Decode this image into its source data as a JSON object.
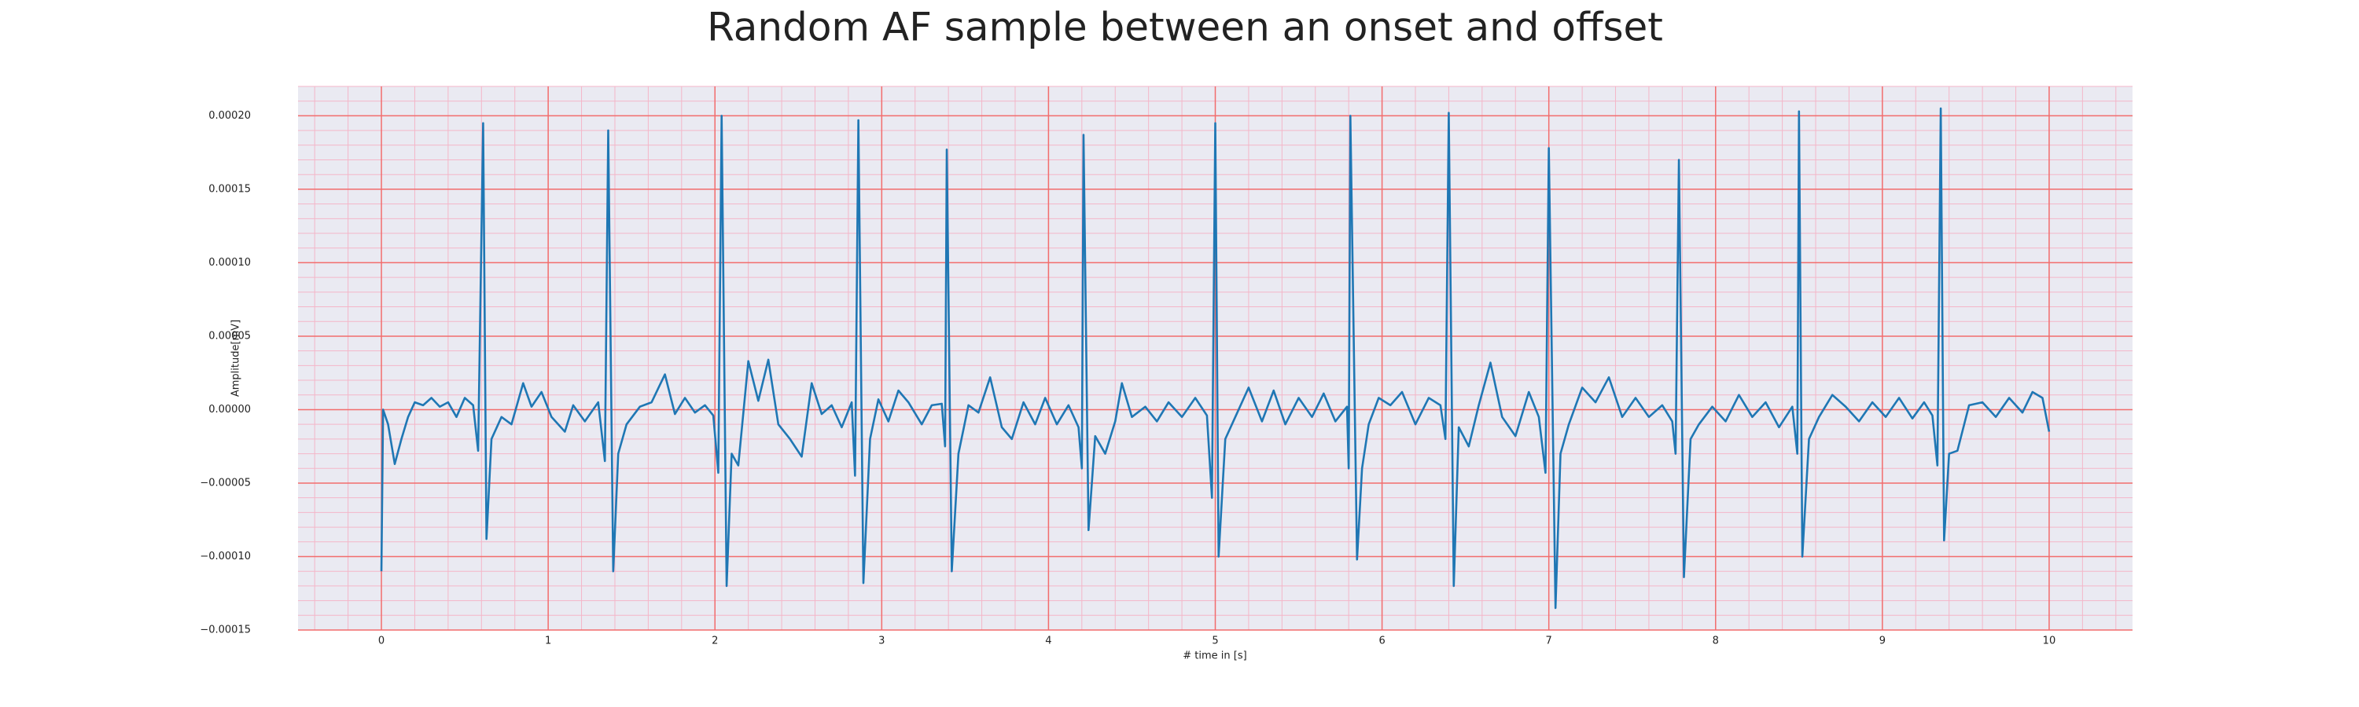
{
  "chart_data": {
    "type": "line",
    "title": "Random AF sample between an onset and offset",
    "x_label": "# time in [s]",
    "y_label": "Amplitude[mV]",
    "color": "#1f77b4",
    "grid": true,
    "minor_grid": true,
    "xlim": [
      -0.5,
      10.5
    ],
    "ylim": [
      -0.00015,
      0.00022
    ],
    "xticks": [
      0,
      1,
      2,
      3,
      4,
      5,
      6,
      7,
      8,
      9,
      10
    ],
    "yticks": [
      {
        "value": -0.00015,
        "label": "−0.00015"
      },
      {
        "value": -0.0001,
        "label": "−0.00010"
      },
      {
        "value": -5e-05,
        "label": "−0.00005"
      },
      {
        "value": 0,
        "label": "0.00000"
      },
      {
        "value": 5e-05,
        "label": "0.00005"
      },
      {
        "value": 0.0001,
        "label": "0.00010"
      },
      {
        "value": 0.00015,
        "label": "0.00015"
      },
      {
        "value": 0.0002,
        "label": "0.00020"
      }
    ],
    "x": [
      0,
      0.01,
      0.04,
      0.08,
      0.12,
      0.16,
      0.2,
      0.25,
      0.3,
      0.35,
      0.4,
      0.45,
      0.5,
      0.55,
      0.58,
      0.61,
      0.63,
      0.66,
      0.72,
      0.78,
      0.85,
      0.9,
      0.96,
      1.02,
      1.1,
      1.15,
      1.22,
      1.3,
      1.34,
      1.36,
      1.39,
      1.42,
      1.47,
      1.55,
      1.62,
      1.7,
      1.76,
      1.82,
      1.88,
      1.94,
      1.99,
      2.02,
      2.04,
      2.07,
      2.1,
      2.14,
      2.2,
      2.26,
      2.32,
      2.38,
      2.45,
      2.52,
      2.58,
      2.64,
      2.7,
      2.76,
      2.82,
      2.84,
      2.86,
      2.89,
      2.93,
      2.98,
      3.04,
      3.1,
      3.16,
      3.24,
      3.3,
      3.36,
      3.38,
      3.39,
      3.42,
      3.46,
      3.52,
      3.58,
      3.65,
      3.72,
      3.78,
      3.85,
      3.92,
      3.98,
      4.05,
      4.12,
      4.18,
      4.2,
      4.21,
      4.24,
      4.28,
      4.34,
      4.4,
      4.44,
      4.5,
      4.58,
      4.65,
      4.72,
      4.8,
      4.88,
      4.95,
      4.98,
      5.0,
      5.02,
      5.06,
      5.12,
      5.2,
      5.28,
      5.35,
      5.42,
      5.5,
      5.58,
      5.65,
      5.72,
      5.79,
      5.8,
      5.81,
      5.85,
      5.88,
      5.92,
      5.98,
      6.05,
      6.12,
      6.2,
      6.28,
      6.35,
      6.38,
      6.4,
      6.43,
      6.46,
      6.52,
      6.58,
      6.65,
      6.72,
      6.8,
      6.88,
      6.94,
      6.98,
      7.0,
      7.04,
      7.07,
      7.12,
      7.2,
      7.28,
      7.36,
      7.44,
      7.52,
      7.6,
      7.68,
      7.74,
      7.76,
      7.78,
      7.81,
      7.85,
      7.9,
      7.98,
      8.06,
      8.14,
      8.22,
      8.3,
      8.38,
      8.46,
      8.49,
      8.5,
      8.52,
      8.56,
      8.62,
      8.7,
      8.78,
      8.86,
      8.94,
      9.02,
      9.1,
      9.18,
      9.25,
      9.3,
      9.33,
      9.35,
      9.37,
      9.4,
      9.45,
      9.52,
      9.6,
      9.68,
      9.76,
      9.84,
      9.9,
      9.96,
      10.0
    ],
    "values": [
      -0.00011,
      0,
      -1e-05,
      -3.7e-05,
      -2e-05,
      -5e-06,
      5e-06,
      3e-06,
      8e-06,
      2e-06,
      5e-06,
      -5e-06,
      8e-06,
      3e-06,
      -2.8e-05,
      0.000195,
      -8.8e-05,
      -2e-05,
      -5e-06,
      -1e-05,
      1.8e-05,
      2e-06,
      1.2e-05,
      -5e-06,
      -1.5e-05,
      3e-06,
      -8e-06,
      5e-06,
      -3.5e-05,
      0.00019,
      -0.00011,
      -3e-05,
      -1e-05,
      2e-06,
      5e-06,
      2.4e-05,
      -3e-06,
      8e-06,
      -2e-06,
      3e-06,
      -4e-06,
      -4.3e-05,
      0.0002,
      -0.00012,
      -3e-05,
      -3.8e-05,
      3.3e-05,
      6e-06,
      3.4e-05,
      -1e-05,
      -2e-05,
      -3.2e-05,
      1.8e-05,
      -3e-06,
      3e-06,
      -1.2e-05,
      5e-06,
      -4.5e-05,
      0.000197,
      -0.000118,
      -2e-05,
      7e-06,
      -8e-06,
      1.3e-05,
      5e-06,
      -1e-05,
      3e-06,
      4e-06,
      -2.5e-05,
      0.000177,
      -0.00011,
      -3e-05,
      3e-06,
      -2e-06,
      2.2e-05,
      -1.2e-05,
      -2e-05,
      5e-06,
      -1e-05,
      8e-06,
      -1e-05,
      3e-06,
      -1.2e-05,
      -4e-05,
      0.000187,
      -8.2e-05,
      -1.8e-05,
      -3e-05,
      -8e-06,
      1.8e-05,
      -5e-06,
      2e-06,
      -8e-06,
      5e-06,
      -5e-06,
      8e-06,
      -4e-06,
      -6e-05,
      0.000195,
      -0.0001,
      -2e-05,
      -5e-06,
      1.5e-05,
      -8e-06,
      1.3e-05,
      -1e-05,
      8e-06,
      -5e-06,
      1.1e-05,
      -8e-06,
      2e-06,
      -4e-05,
      0.0002,
      -0.000102,
      -4e-05,
      -1e-05,
      8e-06,
      3e-06,
      1.2e-05,
      -1e-05,
      8e-06,
      3e-06,
      -2e-05,
      0.000202,
      -0.00012,
      -1.2e-05,
      -2.5e-05,
      3e-06,
      3.2e-05,
      -5e-06,
      -1.8e-05,
      1.2e-05,
      -5e-06,
      -4.3e-05,
      0.000178,
      -0.000135,
      -3e-05,
      -1e-05,
      1.5e-05,
      5e-06,
      2.2e-05,
      -5e-06,
      8e-06,
      -5e-06,
      3e-06,
      -8e-06,
      -3e-05,
      0.00017,
      -0.000114,
      -2e-05,
      -1e-05,
      2e-06,
      -8e-06,
      1e-05,
      -5e-06,
      5e-06,
      -1.2e-05,
      2e-06,
      -3e-05,
      0.000203,
      -0.0001,
      -2e-05,
      -5e-06,
      1e-05,
      2e-06,
      -8e-06,
      5e-06,
      -5e-06,
      8e-06,
      -6e-06,
      5e-06,
      -4e-06,
      -3.8e-05,
      0.000205,
      -8.9e-05,
      -3e-05,
      -2.8e-05,
      3e-06,
      5e-06,
      -5e-06,
      8e-06,
      -2e-06,
      1.2e-05,
      8e-06,
      -1.5e-05
    ]
  }
}
